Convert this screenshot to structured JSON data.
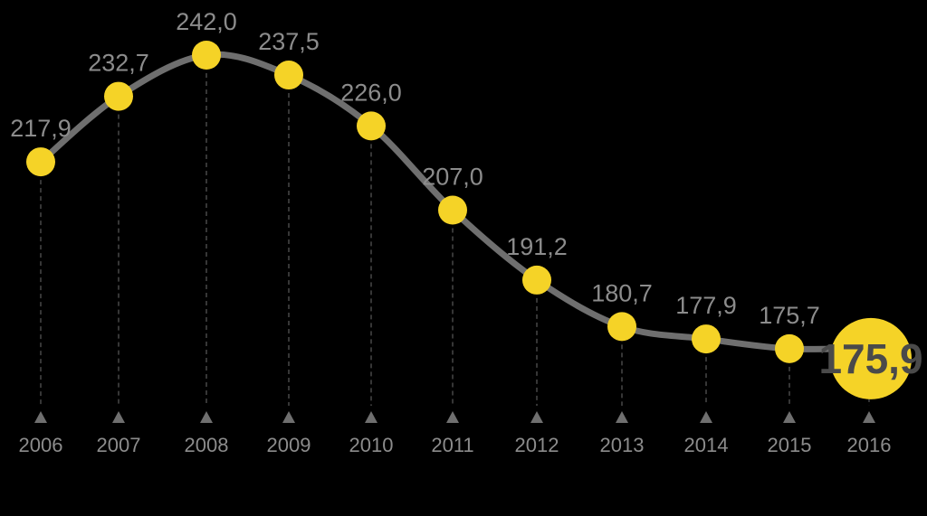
{
  "chart_data": {
    "type": "line",
    "title": "",
    "xlabel": "",
    "ylabel": "",
    "x": [
      "2006",
      "2007",
      "2008",
      "2009",
      "2010",
      "2011",
      "2012",
      "2013",
      "2014",
      "2015",
      "2016"
    ],
    "values": [
      217.9,
      232.7,
      242.0,
      237.5,
      226.0,
      207.0,
      191.2,
      180.7,
      177.9,
      175.7,
      175.9
    ],
    "value_labels": [
      "217,9",
      "232,7",
      "242,0",
      "237,5",
      "226,0",
      "207,0",
      "191,2",
      "180,7",
      "177,9",
      "175,7",
      "175,9"
    ],
    "highlight_index": 10,
    "grid": false,
    "legend": "none",
    "colors": {
      "background": "#000000",
      "line": "#6f6f6f",
      "marker": "#f5d327",
      "label": "#8c8c8c",
      "highlight_text": "#4a4a4a"
    }
  }
}
